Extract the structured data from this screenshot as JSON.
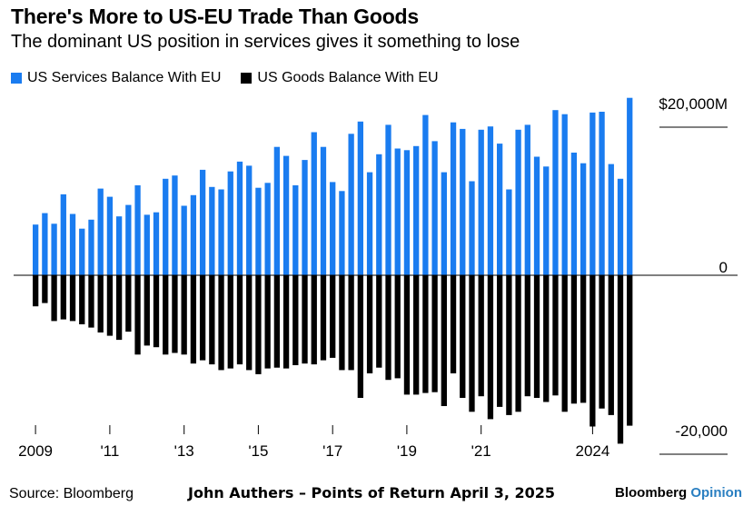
{
  "header": {
    "title": "There's More to US-EU Trade Than Goods",
    "subtitle": "The dominant US position in services gives it something to lose"
  },
  "footer": {
    "source": "Source: Bloomberg",
    "credit": "John Authers – Points of Return April 3, 2025",
    "brand_main": "Bloomberg",
    "brand_sub": "Opinion"
  },
  "colors": {
    "services": "#1a7cf0",
    "goods": "#000000"
  },
  "chart_data": {
    "type": "bar",
    "title": "There's More to US-EU Trade Than Goods",
    "subtitle": "The dominant US position in services gives it something to lose",
    "frequency": "quarterly",
    "start": "2009 Q1",
    "ylim": [
      -21000,
      22000
    ],
    "yticks": [
      {
        "value": 20000,
        "label": "$20,000M"
      },
      {
        "value": 0,
        "label": "0"
      },
      {
        "value": -20000,
        "label": "-20,000"
      }
    ],
    "xticks": [
      "2009",
      "'11",
      "'13",
      "'15",
      "'17",
      "'19",
      "'21",
      "2024"
    ],
    "legend_position": "top-left",
    "series": [
      {
        "name": "US Services Balance With EU",
        "color": "#1a7cf0",
        "values": [
          6200,
          7600,
          6300,
          9900,
          7500,
          5700,
          6800,
          10600,
          9600,
          7200,
          8600,
          11000,
          7400,
          7700,
          11800,
          12200,
          8500,
          9800,
          12900,
          10800,
          10500,
          12700,
          13900,
          13400,
          10700,
          11300,
          15700,
          14600,
          11000,
          14100,
          17500,
          15700,
          11400,
          10300,
          17300,
          18800,
          12600,
          14800,
          18400,
          15500,
          15300,
          15800,
          19600,
          16400,
          12600,
          18700,
          17900,
          11500,
          17800,
          18200,
          16100,
          10500,
          17800,
          18400,
          14500,
          13300,
          20200,
          19700,
          15000,
          13700,
          19900,
          20000,
          13600,
          11800,
          21700
        ]
      },
      {
        "name": "US Goods Balance With EU",
        "color": "#000000",
        "values": [
          -3800,
          -3400,
          -5600,
          -5400,
          -5600,
          -6000,
          -6400,
          -7000,
          -7400,
          -7900,
          -6900,
          -9700,
          -8600,
          -8800,
          -9700,
          -9500,
          -9700,
          -10800,
          -10400,
          -10900,
          -11600,
          -11400,
          -10900,
          -11600,
          -12100,
          -11400,
          -11300,
          -11400,
          -11000,
          -10800,
          -10900,
          -10400,
          -10100,
          -11600,
          -11600,
          -15000,
          -12000,
          -11300,
          -12800,
          -12600,
          -14600,
          -14600,
          -14400,
          -14300,
          -16000,
          -12000,
          -15000,
          -16700,
          -14800,
          -17600,
          -16100,
          -17100,
          -16700,
          -14800,
          -15000,
          -15500,
          -14700,
          -16700,
          -15700,
          -15600,
          -18500,
          -16300,
          -17100,
          -20600,
          -18400
        ]
      }
    ]
  }
}
